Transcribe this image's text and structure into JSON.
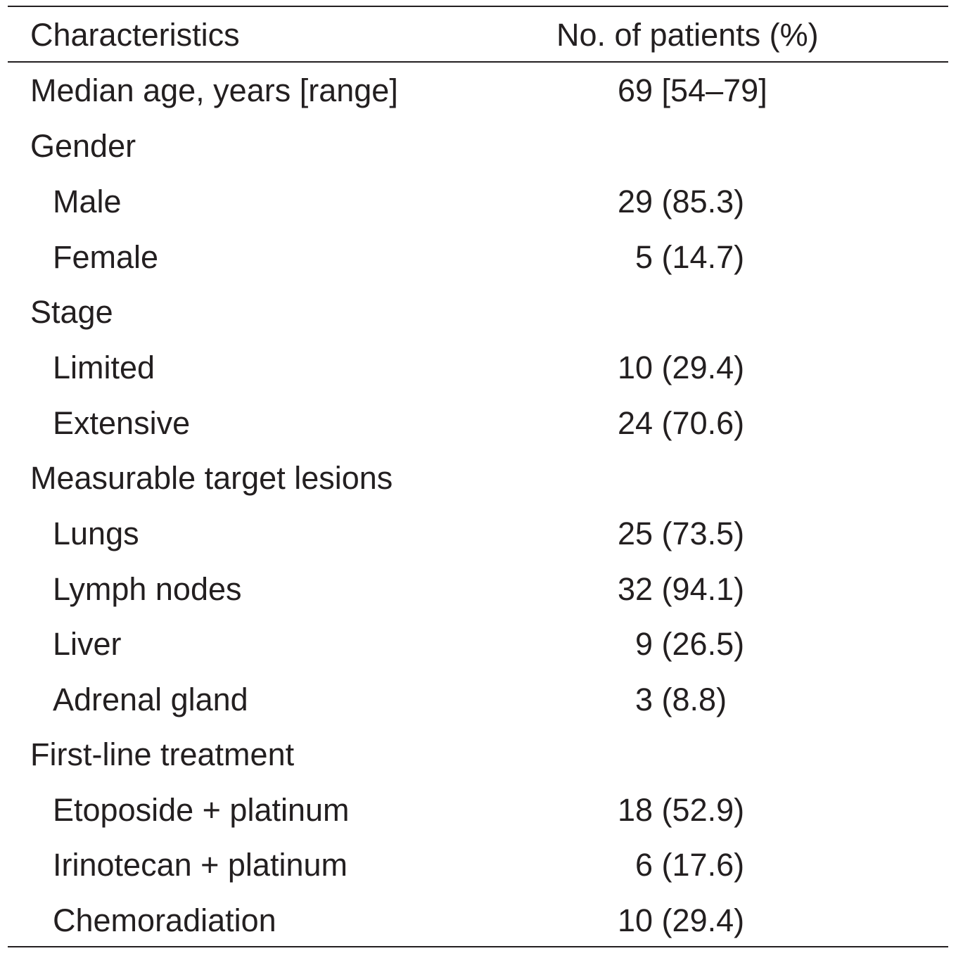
{
  "table": {
    "header": {
      "characteristics": "Characteristics",
      "patients": "No. of patients (%)"
    },
    "rows": [
      {
        "label": "Median age, years [range]",
        "value": "69 [54–79]"
      },
      {
        "label": "Gender",
        "value": ""
      },
      {
        "label": "Male",
        "value": "29 (85.3)"
      },
      {
        "label": "Female",
        "value": "  5 (14.7)"
      },
      {
        "label": "Stage",
        "value": ""
      },
      {
        "label": "Limited",
        "value": "10 (29.4)"
      },
      {
        "label": "Extensive",
        "value": "24 (70.6)"
      },
      {
        "label": "Measurable target lesions",
        "value": ""
      },
      {
        "label": "Lungs",
        "value": "25 (73.5)"
      },
      {
        "label": "Lymph nodes",
        "value": "32 (94.1)"
      },
      {
        "label": "Liver",
        "value": "  9 (26.5)"
      },
      {
        "label": "Adrenal gland",
        "value": "  3 (8.8)"
      },
      {
        "label": "First-line treatment",
        "value": ""
      },
      {
        "label": "Etoposide + platinum",
        "value": "18 (52.9)"
      },
      {
        "label": "Irinotecan + platinum",
        "value": "  6 (17.6)"
      },
      {
        "label": "Chemoradiation",
        "value": "10 (29.4)"
      }
    ]
  }
}
